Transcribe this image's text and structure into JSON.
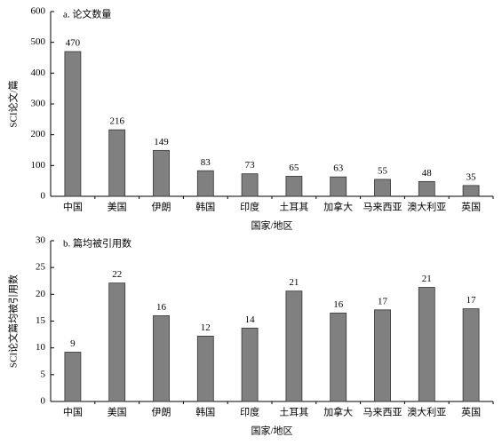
{
  "chart_data": [
    {
      "type": "bar",
      "title": "a. 论文数量",
      "ylabel": "SCI论文/篇",
      "xlabel": "国家/地区",
      "categories": [
        "中国",
        "美国",
        "伊朗",
        "韩国",
        "印度",
        "土耳其",
        "加拿大",
        "马来西亚",
        "澳大利亚",
        "英国"
      ],
      "values": [
        470,
        216,
        149,
        83,
        73,
        65,
        63,
        55,
        48,
        35
      ],
      "color": "#808080",
      "ylim": [
        0,
        600
      ],
      "yticks": [
        0,
        100,
        200,
        300,
        400,
        500,
        600
      ]
    },
    {
      "type": "bar",
      "title": "b. 篇均被引用数",
      "ylabel": "SCI论文篇均被引用数",
      "xlabel": "国家/地区",
      "categories": [
        "中国",
        "美国",
        "伊朗",
        "韩国",
        "印度",
        "土耳其",
        "加拿大",
        "马来西亚",
        "澳大利亚",
        "英国"
      ],
      "values": [
        9.2,
        22.1,
        16,
        12.2,
        13.7,
        20.6,
        16.5,
        17.1,
        21.3,
        17.3
      ],
      "value_labels": [
        "9",
        "22",
        "16",
        "12",
        "14",
        "21",
        "16",
        "17",
        "21",
        "17"
      ],
      "color": "#808080",
      "ylim": [
        0,
        30
      ],
      "yticks": [
        0,
        5,
        10,
        15,
        20,
        25,
        30
      ]
    }
  ]
}
